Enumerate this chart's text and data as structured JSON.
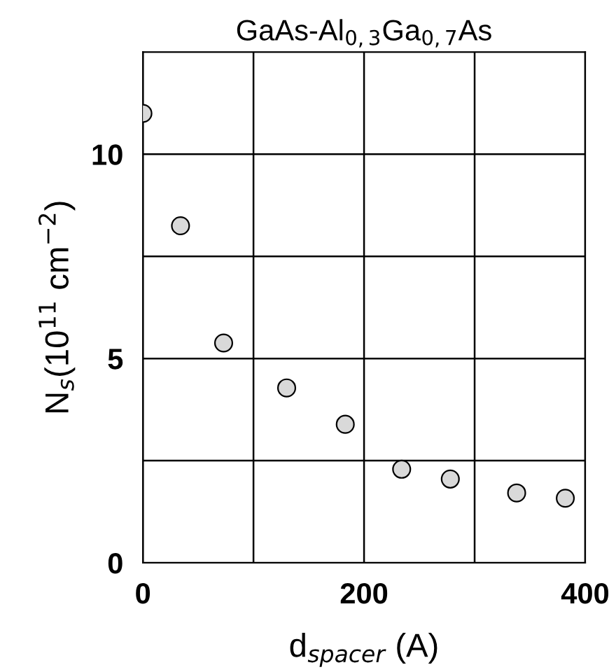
{
  "chart_data": {
    "type": "scatter",
    "title": "GaAs-Al$_{0,3}$Ga$_{0,7}$As",
    "xlabel": "d$_{spacer}$ (A)",
    "ylabel": "N$_{s}$(10$^{11}$ cm$^{−2}$)",
    "x": [
      0,
      34,
      73,
      130,
      183,
      234,
      278,
      338,
      382
    ],
    "values": [
      11.0,
      8.25,
      5.38,
      4.28,
      3.39,
      2.29,
      2.05,
      1.71,
      1.58
    ],
    "color": "#d9d9d9",
    "marker": "circle",
    "grid": true,
    "xlim": [
      0,
      400
    ],
    "xticks": [
      0,
      {
        "value": 100,
        "label": null
      },
      200,
      {
        "value": 300,
        "label": null
      },
      400
    ],
    "ylim": [
      0,
      12.5
    ],
    "yticks": [
      0,
      {
        "value": 2.5,
        "label": null
      },
      5,
      {
        "value": 7.5,
        "label": null
      },
      10
    ]
  }
}
